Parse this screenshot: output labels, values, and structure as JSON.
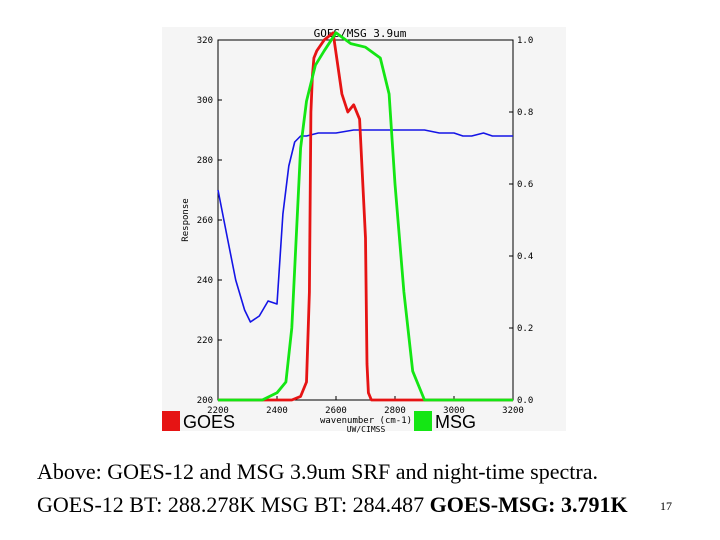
{
  "chart_data": {
    "type": "line",
    "title": "GOES/MSG 3.9um",
    "xlabel": "wavenumber (cm-1)",
    "credit": "UW/CIMSS",
    "ylabel_left": "Response",
    "xlim": [
      2200,
      3200
    ],
    "ylim_left": [
      200,
      320
    ],
    "ylim_right": [
      0.0,
      1.0
    ],
    "x_ticks": [
      "2200",
      "2400",
      "2600",
      "2800",
      "3000",
      "3200"
    ],
    "y_ticks_left": [
      "200",
      "220",
      "240",
      "260",
      "280",
      "300",
      "320"
    ],
    "y_ticks_right": [
      "0.0",
      "0.2",
      "0.4",
      "0.6",
      "0.8",
      "1.0"
    ],
    "series": [
      {
        "name": "Night-time spectrum (BT, K)",
        "color": "#1414e6",
        "axis": "left",
        "x": [
          2200,
          2230,
          2260,
          2290,
          2310,
          2340,
          2370,
          2400,
          2420,
          2440,
          2460,
          2480,
          2500,
          2540,
          2600,
          2660,
          2720,
          2800,
          2900,
          2950,
          3000,
          3030,
          3060,
          3100,
          3130,
          3160,
          3200
        ],
        "values": [
          270,
          255,
          240,
          230,
          226,
          228,
          233,
          232,
          262,
          278,
          286,
          288,
          288,
          289,
          289,
          290,
          290,
          290,
          290,
          289,
          289,
          288,
          288,
          289,
          288,
          288,
          288
        ]
      },
      {
        "name": "GOES",
        "color": "#e61414",
        "axis": "right",
        "x": [
          2200,
          2450,
          2480,
          2500,
          2510,
          2515,
          2520,
          2525,
          2535,
          2560,
          2590,
          2620,
          2640,
          2660,
          2680,
          2700,
          2705,
          2710,
          2720,
          3200
        ],
        "values": [
          0.0,
          0.0,
          0.01,
          0.05,
          0.3,
          0.8,
          0.9,
          0.95,
          0.97,
          1.0,
          1.02,
          0.85,
          0.8,
          0.82,
          0.78,
          0.45,
          0.1,
          0.02,
          0.0,
          0.0
        ]
      },
      {
        "name": "MSG",
        "color": "#14e614",
        "axis": "right",
        "x": [
          2200,
          2350,
          2400,
          2430,
          2450,
          2480,
          2500,
          2530,
          2560,
          2600,
          2650,
          2700,
          2750,
          2780,
          2800,
          2830,
          2860,
          2900,
          3200
        ],
        "values": [
          0.0,
          0.0,
          0.02,
          0.05,
          0.2,
          0.7,
          0.83,
          0.93,
          0.97,
          1.02,
          0.99,
          0.98,
          0.95,
          0.85,
          0.6,
          0.3,
          0.08,
          0.0,
          0.0
        ]
      }
    ],
    "legend": [
      {
        "label": "GOES",
        "color": "#e61414"
      },
      {
        "label": "MSG",
        "color": "#14e614"
      }
    ]
  },
  "caption": {
    "line1": "Above: GOES-12 and MSG 3.9um SRF and night-time spectra.",
    "line2_prefix": "GOES-12 BT: 288.278K MSG BT: 284.487 ",
    "line2_bold": "GOES-MSG: 3.791K"
  },
  "page_number": "17"
}
